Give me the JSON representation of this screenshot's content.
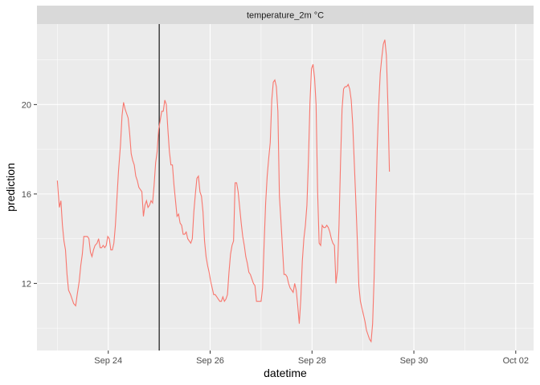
{
  "chart_data": {
    "type": "line",
    "facet_label": "temperature_2m °C",
    "xlabel": "datetime",
    "ylabel": "prediction",
    "x_ticks": [
      {
        "day": 1,
        "label": "Sep 24"
      },
      {
        "day": 3,
        "label": "Sep 26"
      },
      {
        "day": 5,
        "label": "Sep 28"
      },
      {
        "day": 7,
        "label": "Sep 30"
      },
      {
        "day": 9,
        "label": "Oct 02"
      }
    ],
    "y_ticks": [
      12,
      16,
      20
    ],
    "xlim": [
      -0.4,
      9.35
    ],
    "ylim": [
      9.0,
      23.6
    ],
    "grid": true,
    "vline_day": 2.0,
    "colors": {
      "line": "#f8766d",
      "vline": "#000000",
      "panel": "#ebebeb",
      "grid_major": "#ffffff",
      "strip": "#d9d9d9"
    },
    "series": [
      {
        "values": [
          [
            0.0,
            16.6
          ],
          [
            0.04,
            15.4
          ],
          [
            0.07,
            15.7
          ],
          [
            0.1,
            14.6
          ],
          [
            0.13,
            13.9
          ],
          [
            0.16,
            13.5
          ],
          [
            0.19,
            12.4
          ],
          [
            0.22,
            11.7
          ],
          [
            0.26,
            11.5
          ],
          [
            0.29,
            11.3
          ],
          [
            0.32,
            11.1
          ],
          [
            0.36,
            11.0
          ],
          [
            0.39,
            11.5
          ],
          [
            0.43,
            12.1
          ],
          [
            0.46,
            12.8
          ],
          [
            0.49,
            13.3
          ],
          [
            0.52,
            14.1
          ],
          [
            0.56,
            14.1
          ],
          [
            0.59,
            14.1
          ],
          [
            0.62,
            14.0
          ],
          [
            0.65,
            13.4
          ],
          [
            0.68,
            13.2
          ],
          [
            0.71,
            13.5
          ],
          [
            0.74,
            13.7
          ],
          [
            0.78,
            13.8
          ],
          [
            0.81,
            14.0
          ],
          [
            0.84,
            13.6
          ],
          [
            0.87,
            13.6
          ],
          [
            0.9,
            13.7
          ],
          [
            0.93,
            13.6
          ],
          [
            0.96,
            13.7
          ],
          [
            0.99,
            14.1
          ],
          [
            1.02,
            14.0
          ],
          [
            1.05,
            13.5
          ],
          [
            1.08,
            13.5
          ],
          [
            1.11,
            13.8
          ],
          [
            1.14,
            14.6
          ],
          [
            1.17,
            15.8
          ],
          [
            1.2,
            17.0
          ],
          [
            1.24,
            18.2
          ],
          [
            1.27,
            19.5
          ],
          [
            1.3,
            20.1
          ],
          [
            1.33,
            19.8
          ],
          [
            1.36,
            19.6
          ],
          [
            1.39,
            19.4
          ],
          [
            1.42,
            18.7
          ],
          [
            1.45,
            17.8
          ],
          [
            1.48,
            17.5
          ],
          [
            1.51,
            17.3
          ],
          [
            1.54,
            16.8
          ],
          [
            1.57,
            16.6
          ],
          [
            1.6,
            16.3
          ],
          [
            1.63,
            16.2
          ],
          [
            1.66,
            16.1
          ],
          [
            1.69,
            15.0
          ],
          [
            1.72,
            15.5
          ],
          [
            1.75,
            15.7
          ],
          [
            1.78,
            15.4
          ],
          [
            1.81,
            15.5
          ],
          [
            1.84,
            15.7
          ],
          [
            1.87,
            15.6
          ],
          [
            1.9,
            16.4
          ],
          [
            1.93,
            17.4
          ],
          [
            1.96,
            17.9
          ],
          [
            1.99,
            18.9
          ],
          [
            2.02,
            19.3
          ],
          [
            2.05,
            19.7
          ],
          [
            2.08,
            19.7
          ],
          [
            2.11,
            20.2
          ],
          [
            2.14,
            20.0
          ],
          [
            2.17,
            18.9
          ],
          [
            2.2,
            17.9
          ],
          [
            2.23,
            17.3
          ],
          [
            2.26,
            17.3
          ],
          [
            2.29,
            16.4
          ],
          [
            2.32,
            15.7
          ],
          [
            2.35,
            15.0
          ],
          [
            2.38,
            15.1
          ],
          [
            2.41,
            14.7
          ],
          [
            2.44,
            14.6
          ],
          [
            2.47,
            14.2
          ],
          [
            2.5,
            14.2
          ],
          [
            2.53,
            14.3
          ],
          [
            2.56,
            14.0
          ],
          [
            2.59,
            13.9
          ],
          [
            2.62,
            13.8
          ],
          [
            2.65,
            14.0
          ],
          [
            2.68,
            15.2
          ],
          [
            2.71,
            16.0
          ],
          [
            2.74,
            16.7
          ],
          [
            2.77,
            16.8
          ],
          [
            2.8,
            16.1
          ],
          [
            2.83,
            15.9
          ],
          [
            2.86,
            15.2
          ],
          [
            2.89,
            13.9
          ],
          [
            2.92,
            13.2
          ],
          [
            2.95,
            12.8
          ],
          [
            2.98,
            12.5
          ],
          [
            3.01,
            12.1
          ],
          [
            3.04,
            11.8
          ],
          [
            3.07,
            11.5
          ],
          [
            3.1,
            11.5
          ],
          [
            3.13,
            11.4
          ],
          [
            3.16,
            11.3
          ],
          [
            3.19,
            11.2
          ],
          [
            3.22,
            11.2
          ],
          [
            3.25,
            11.4
          ],
          [
            3.28,
            11.2
          ],
          [
            3.31,
            11.3
          ],
          [
            3.34,
            11.5
          ],
          [
            3.37,
            12.5
          ],
          [
            3.4,
            13.3
          ],
          [
            3.43,
            13.7
          ],
          [
            3.46,
            13.9
          ],
          [
            3.49,
            16.5
          ],
          [
            3.52,
            16.5
          ],
          [
            3.55,
            16.1
          ],
          [
            3.58,
            15.4
          ],
          [
            3.61,
            14.7
          ],
          [
            3.64,
            14.1
          ],
          [
            3.67,
            13.7
          ],
          [
            3.7,
            13.2
          ],
          [
            3.73,
            12.9
          ],
          [
            3.76,
            12.5
          ],
          [
            3.79,
            12.4
          ],
          [
            3.82,
            12.2
          ],
          [
            3.85,
            12.0
          ],
          [
            3.88,
            11.9
          ],
          [
            3.91,
            11.2
          ],
          [
            3.94,
            11.2
          ],
          [
            3.97,
            11.2
          ],
          [
            4.0,
            11.2
          ],
          [
            4.03,
            11.8
          ],
          [
            4.06,
            13.8
          ],
          [
            4.09,
            15.6
          ],
          [
            4.12,
            16.8
          ],
          [
            4.15,
            17.6
          ],
          [
            4.18,
            18.3
          ],
          [
            4.21,
            20.2
          ],
          [
            4.24,
            21.0
          ],
          [
            4.27,
            21.1
          ],
          [
            4.3,
            20.8
          ],
          [
            4.33,
            19.7
          ],
          [
            4.36,
            15.9
          ],
          [
            4.39,
            14.8
          ],
          [
            4.42,
            13.6
          ],
          [
            4.45,
            12.4
          ],
          [
            4.48,
            12.4
          ],
          [
            4.51,
            12.3
          ],
          [
            4.54,
            12.0
          ],
          [
            4.57,
            11.8
          ],
          [
            4.6,
            11.7
          ],
          [
            4.63,
            11.6
          ],
          [
            4.66,
            12.0
          ],
          [
            4.69,
            11.7
          ],
          [
            4.72,
            11.0
          ],
          [
            4.75,
            10.2
          ],
          [
            4.78,
            11.3
          ],
          [
            4.81,
            13.0
          ],
          [
            4.84,
            14.0
          ],
          [
            4.87,
            14.6
          ],
          [
            4.9,
            15.5
          ],
          [
            4.93,
            17.5
          ],
          [
            4.96,
            20.1
          ],
          [
            4.99,
            21.6
          ],
          [
            5.02,
            21.8
          ],
          [
            5.05,
            21.2
          ],
          [
            5.08,
            20.0
          ],
          [
            5.11,
            16.1
          ],
          [
            5.14,
            13.8
          ],
          [
            5.17,
            13.7
          ],
          [
            5.2,
            14.6
          ],
          [
            5.23,
            14.5
          ],
          [
            5.26,
            14.5
          ],
          [
            5.29,
            14.6
          ],
          [
            5.32,
            14.5
          ],
          [
            5.35,
            14.3
          ],
          [
            5.38,
            14.0
          ],
          [
            5.41,
            13.8
          ],
          [
            5.44,
            13.7
          ],
          [
            5.47,
            12.0
          ],
          [
            5.5,
            12.6
          ],
          [
            5.53,
            14.6
          ],
          [
            5.56,
            17.4
          ],
          [
            5.59,
            19.8
          ],
          [
            5.62,
            20.7
          ],
          [
            5.65,
            20.8
          ],
          [
            5.68,
            20.8
          ],
          [
            5.71,
            20.9
          ],
          [
            5.74,
            20.7
          ],
          [
            5.77,
            20.2
          ],
          [
            5.8,
            19.1
          ],
          [
            5.83,
            17.4
          ],
          [
            5.86,
            15.7
          ],
          [
            5.89,
            13.9
          ],
          [
            5.92,
            11.9
          ],
          [
            5.95,
            11.2
          ],
          [
            5.98,
            10.9
          ],
          [
            6.01,
            10.6
          ],
          [
            6.04,
            10.3
          ],
          [
            6.07,
            9.9
          ],
          [
            6.1,
            9.7
          ],
          [
            6.13,
            9.5
          ],
          [
            6.16,
            9.4
          ],
          [
            6.19,
            10.2
          ],
          [
            6.22,
            12.3
          ],
          [
            6.25,
            15.3
          ],
          [
            6.28,
            18.0
          ],
          [
            6.31,
            20.0
          ],
          [
            6.34,
            21.4
          ],
          [
            6.37,
            22.1
          ],
          [
            6.4,
            22.7
          ],
          [
            6.43,
            22.9
          ],
          [
            6.46,
            22.2
          ],
          [
            6.49,
            20.0
          ],
          [
            6.52,
            17.0
          ]
        ]
      }
    ]
  }
}
